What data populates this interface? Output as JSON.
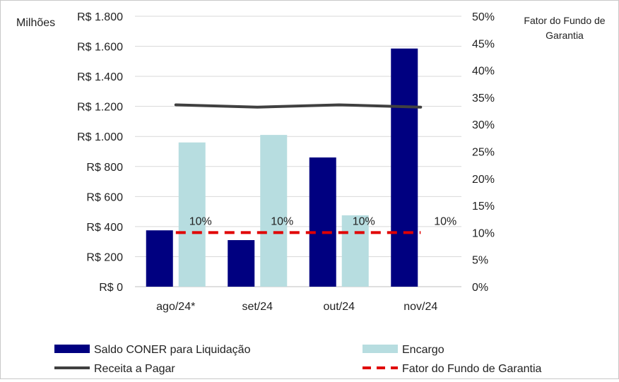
{
  "chart_data": {
    "type": "bar",
    "categories": [
      "ago/24*",
      "set/24",
      "out/24",
      "nov/24"
    ],
    "y_left": {
      "unit_label": "Milhões",
      "ylim": [
        0,
        1800
      ],
      "ticks": [
        0,
        200,
        400,
        600,
        800,
        1000,
        1200,
        1400,
        1600,
        1800
      ],
      "tick_labels": [
        "R$ 0",
        "R$ 200",
        "R$ 400",
        "R$ 600",
        "R$ 800",
        "R$ 1.000",
        "R$ 1.200",
        "R$ 1.400",
        "R$ 1.600",
        "R$ 1.800"
      ]
    },
    "y_right": {
      "title_line1": "Fator do Fundo de",
      "title_line2": "Garantia",
      "ylim": [
        0,
        50
      ],
      "ticks": [
        0,
        5,
        10,
        15,
        20,
        25,
        30,
        35,
        40,
        45,
        50
      ],
      "tick_labels": [
        "0%",
        "5%",
        "10%",
        "15%",
        "20%",
        "25%",
        "30%",
        "35%",
        "40%",
        "45%",
        "50%"
      ]
    },
    "series": [
      {
        "name": "Saldo CONER para Liquidação",
        "kind": "bar",
        "axis": "left",
        "color": "#000080",
        "values": [
          375,
          310,
          860,
          1585
        ]
      },
      {
        "name": "Encargo",
        "kind": "bar",
        "axis": "left",
        "color": "#b7dde0",
        "values": [
          960,
          1010,
          475,
          null
        ]
      },
      {
        "name": "Receita a Pagar",
        "kind": "line",
        "axis": "left",
        "color": "#404040",
        "values": [
          1210,
          1195,
          1210,
          1195
        ]
      },
      {
        "name": "Fator do Fundo de Garantia",
        "kind": "line",
        "dashed": true,
        "axis": "right",
        "color": "#e00000",
        "values": [
          10,
          10,
          10,
          10
        ]
      }
    ],
    "data_labels": [
      "10%",
      "10%",
      "10%",
      "10%"
    ],
    "grid": "horizontal",
    "legend_position": "bottom"
  }
}
